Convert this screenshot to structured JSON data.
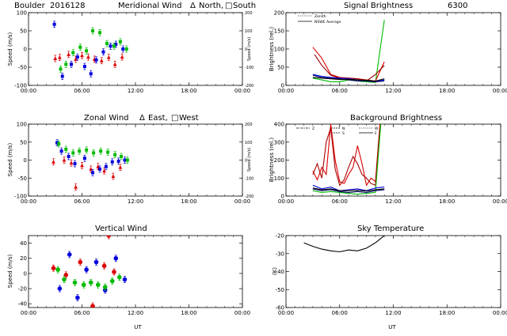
{
  "header": {
    "site": "Boulder",
    "date": "2016128"
  },
  "colors": {
    "north": "#dd0000",
    "south": "#0000dd",
    "east": "#dd0000",
    "west": "#0000dd",
    "zenith": "#00bb00",
    "axis": "#000000"
  },
  "chart_data": [
    {
      "id": "meridional",
      "type": "scatter",
      "title": "Meridional Wind",
      "legend": {
        "marker1": "Δ",
        "label1": "North,",
        "marker2": "□",
        "label2": "South"
      },
      "xlabel": "",
      "ylabel": "Speed (m/s)",
      "ylabel_right": "Speed (m/s)",
      "ylim": [
        -100,
        100
      ],
      "yticks": [
        -100,
        -50,
        0,
        50,
        100
      ],
      "ylim_right": [
        -200,
        200
      ],
      "yticks_right": [
        -200,
        -100,
        0,
        100,
        200
      ],
      "xlim": [
        0,
        24
      ],
      "xticks": [
        "00:00",
        "06:00",
        "12:00",
        "18:00",
        "00:00"
      ],
      "series": [
        {
          "name": "North",
          "color": "#dd0000",
          "marker": "triangle",
          "x": [
            3.0,
            3.5,
            4.5,
            5.3,
            6.0,
            6.7,
            7.4,
            8.2,
            9.0,
            9.7,
            10.5
          ],
          "y": [
            -26,
            -23,
            -15,
            -28,
            -18,
            -22,
            -28,
            -32,
            -23,
            -42,
            -22
          ]
        },
        {
          "name": "South",
          "color": "#0000dd",
          "marker": "square",
          "x": [
            2.9,
            3.8,
            4.8,
            5.5,
            6.3,
            7.0,
            7.6,
            8.4,
            9.2,
            9.8,
            10.6
          ],
          "y": [
            68,
            -75,
            -42,
            -22,
            -48,
            -68,
            -30,
            -8,
            8,
            13,
            0
          ]
        },
        {
          "name": "Zenith",
          "color": "#00bb00",
          "marker": "square",
          "x": [
            3.6,
            4.2,
            5.0,
            5.8,
            6.5,
            7.2,
            8.0,
            8.8,
            9.6,
            10.3,
            11.0
          ],
          "y": [
            -55,
            -42,
            -10,
            5,
            -5,
            50,
            45,
            15,
            8,
            20,
            0
          ]
        }
      ]
    },
    {
      "id": "signal",
      "type": "line",
      "title": "Signal Brightness",
      "title_suffix": "6300",
      "legend": [
        {
          "label": "Zenith",
          "style": "dotted"
        },
        {
          "label": "NSWE Average",
          "style": "solid"
        }
      ],
      "ylabel": "Brightness (rel.)",
      "ylim": [
        0,
        200
      ],
      "yticks": [
        0,
        50,
        100,
        150,
        200
      ],
      "xlim": [
        0,
        24
      ],
      "xticks": [
        "00:00",
        "06:00",
        "12:00",
        "18:00",
        "00:00"
      ],
      "series": [
        {
          "name": "Zenith",
          "color": "#00bb00",
          "x": [
            3.0,
            4.0,
            5.0,
            6.0,
            7.0,
            8.0,
            9.0,
            10.0,
            11.0
          ],
          "y": [
            20,
            15,
            10,
            10,
            15,
            12,
            10,
            8,
            180
          ]
        },
        {
          "name": "North",
          "color": "#dd0000",
          "x": [
            3.0,
            4.0,
            5.0,
            6.0,
            7.0,
            8.0,
            9.0,
            10.0,
            11.0
          ],
          "y": [
            105,
            75,
            30,
            22,
            20,
            18,
            15,
            12,
            65
          ]
        },
        {
          "name": "North 2",
          "color": "#990000",
          "x": [
            3.2,
            4.0,
            5.0,
            6.0,
            7.0,
            8.0,
            9.0,
            10.0,
            11.0
          ],
          "y": [
            85,
            55,
            28,
            20,
            20,
            18,
            12,
            30,
            55
          ]
        },
        {
          "name": "South",
          "color": "#0000dd",
          "x": [
            3.0,
            4.0,
            5.0,
            6.0,
            7.0,
            8.0,
            9.0,
            10.0,
            11.0
          ],
          "y": [
            30,
            25,
            22,
            20,
            18,
            15,
            12,
            10,
            15
          ]
        },
        {
          "name": "West",
          "color": "#000066",
          "x": [
            3.0,
            4.0,
            5.0,
            6.0,
            7.0,
            8.0,
            9.0,
            10.0,
            11.0
          ],
          "y": [
            28,
            22,
            20,
            18,
            15,
            12,
            12,
            10,
            12
          ]
        },
        {
          "name": "Average",
          "color": "#000000",
          "x": [
            3.0,
            4.0,
            5.0,
            6.0,
            7.0,
            8.0,
            9.0,
            10.0,
            11.0
          ],
          "y": [
            22,
            20,
            18,
            16,
            16,
            15,
            14,
            12,
            18
          ]
        }
      ]
    },
    {
      "id": "zonal",
      "type": "scatter",
      "title": "Zonal Wind",
      "legend": {
        "marker1": "Δ",
        "label1": "East,",
        "marker2": "□",
        "label2": "West"
      },
      "ylabel": "Speed (m/s)",
      "ylabel_right": "Speed (m/s)",
      "ylim": [
        -100,
        100
      ],
      "yticks": [
        -100,
        -50,
        0,
        50,
        100
      ],
      "ylim_right": [
        -200,
        200
      ],
      "yticks_right": [
        -200,
        -100,
        0,
        100,
        200
      ],
      "xlim": [
        0,
        24
      ],
      "xticks": [
        "00:00",
        "06:00",
        "12:00",
        "18:00",
        "00:00"
      ],
      "series": [
        {
          "name": "East",
          "color": "#dd0000",
          "marker": "triangle",
          "x": [
            2.8,
            4.0,
            4.8,
            5.3,
            6.0,
            7.0,
            7.8,
            8.5,
            9.5,
            10.3
          ],
          "y": [
            -5,
            0,
            -8,
            -75,
            -15,
            -25,
            -18,
            -30,
            -45,
            -20
          ]
        },
        {
          "name": "West",
          "color": "#0000dd",
          "marker": "square",
          "x": [
            3.2,
            3.7,
            4.5,
            5.2,
            6.3,
            7.2,
            8.0,
            8.7,
            9.4,
            10.1,
            10.8
          ],
          "y": [
            48,
            25,
            10,
            -10,
            5,
            -35,
            -25,
            -18,
            -5,
            -3,
            0
          ]
        },
        {
          "name": "Zenith",
          "color": "#00bb00",
          "marker": "square",
          "x": [
            3.4,
            4.2,
            5.0,
            5.7,
            6.5,
            7.3,
            8.1,
            8.9,
            9.7,
            10.4,
            11.1
          ],
          "y": [
            45,
            30,
            20,
            25,
            28,
            20,
            25,
            22,
            15,
            10,
            0
          ]
        }
      ]
    },
    {
      "id": "background",
      "type": "line",
      "title": "Background Brightness",
      "legend": [
        {
          "label": "Z",
          "style": "dashdot"
        },
        {
          "label": "N",
          "style": "dashed"
        },
        {
          "label": "S",
          "style": "dashed"
        },
        {
          "label": "W",
          "style": "dotted"
        },
        {
          "label": "E",
          "style": "solid"
        }
      ],
      "ylabel": "Brightness (rel.)",
      "ylim": [
        0,
        400
      ],
      "yticks": [
        0,
        100,
        200,
        300,
        400
      ],
      "xlim": [
        0,
        24
      ],
      "xticks": [
        "00:00",
        "06:00",
        "12:00",
        "18:00",
        "00:00"
      ],
      "series": [
        {
          "name": "N",
          "color": "#dd0000",
          "x": [
            3.0,
            3.5,
            4.0,
            4.5,
            5.0,
            5.5,
            6.0,
            6.5,
            7.0,
            7.5,
            8.0,
            8.5,
            9.0,
            9.5,
            10.0,
            10.5
          ],
          "y": [
            140,
            90,
            160,
            120,
            400,
            200,
            80,
            70,
            120,
            160,
            280,
            180,
            60,
            100,
            80,
            400
          ]
        },
        {
          "name": "N 2",
          "color": "#aa0000",
          "x": [
            3.0,
            3.5,
            4.0,
            4.5,
            5.0,
            5.5,
            6.0,
            6.5,
            7.0,
            7.5,
            8.0,
            8.5,
            9.0,
            9.5,
            10.0,
            10.5
          ],
          "y": [
            120,
            180,
            100,
            300,
            380,
            150,
            60,
            90,
            160,
            220,
            180,
            120,
            100,
            70,
            60,
            380
          ]
        },
        {
          "name": "Z",
          "color": "#00bb00",
          "x": [
            3.0,
            4.0,
            5.0,
            6.0,
            7.0,
            8.0,
            9.0,
            10.0,
            10.6
          ],
          "y": [
            30,
            20,
            25,
            20,
            15,
            10,
            15,
            20,
            400
          ]
        },
        {
          "name": "S",
          "color": "#0000dd",
          "x": [
            3.0,
            4.0,
            5.0,
            6.0,
            7.0,
            8.0,
            9.0,
            10.0,
            11.0
          ],
          "y": [
            60,
            40,
            50,
            30,
            35,
            40,
            30,
            45,
            50
          ]
        },
        {
          "name": "W",
          "color": "#000066",
          "x": [
            3.0,
            4.0,
            5.0,
            6.0,
            7.0,
            8.0,
            9.0,
            10.0,
            11.0
          ],
          "y": [
            40,
            30,
            35,
            25,
            20,
            25,
            20,
            30,
            35
          ]
        },
        {
          "name": "E",
          "color": "#000000",
          "x": [
            3.0,
            4.0,
            5.0,
            6.0,
            7.0,
            8.0,
            9.0,
            10.0,
            11.0
          ],
          "y": [
            45,
            35,
            40,
            30,
            30,
            32,
            28,
            35,
            40
          ]
        }
      ]
    },
    {
      "id": "vertical",
      "type": "scatter",
      "title": "Vertical Wind",
      "xlabel": "UT",
      "ylabel": "Speed (m/s)",
      "ylim": [
        -45,
        50
      ],
      "yticks": [
        -40,
        -20,
        0,
        20,
        40
      ],
      "xlim": [
        0,
        24
      ],
      "xticks": [
        "00:00",
        "06:00",
        "12:00",
        "18:00",
        "00:00"
      ],
      "series": [
        {
          "name": "North",
          "color": "#dd0000",
          "marker": "circle",
          "x": [
            2.8,
            4.2,
            5.8,
            7.2,
            8.5,
            9.0,
            9.6
          ],
          "y": [
            7,
            -2,
            15,
            -43,
            10,
            50,
            2
          ]
        },
        {
          "name": "South",
          "color": "#0000dd",
          "marker": "circle",
          "x": [
            3.5,
            4.6,
            5.5,
            6.5,
            7.6,
            8.6,
            9.8,
            10.8
          ],
          "y": [
            -20,
            25,
            -32,
            5,
            15,
            -22,
            20,
            -8
          ]
        },
        {
          "name": "Zenith",
          "color": "#00bb00",
          "marker": "circle",
          "x": [
            3.3,
            4.0,
            5.2,
            6.2,
            7.0,
            7.8,
            8.6,
            9.4,
            10.2
          ],
          "y": [
            5,
            -8,
            -12,
            -15,
            -12,
            -15,
            -18,
            -10,
            -5
          ]
        }
      ]
    },
    {
      "id": "skytemp",
      "type": "line",
      "title": "Sky Temperature",
      "xlabel": "UT",
      "ylabel": "(K)",
      "ylim": [
        -60,
        -20
      ],
      "yticks": [
        -60,
        -50,
        -40,
        -30,
        -20
      ],
      "xlim": [
        0,
        24
      ],
      "xticks": [
        "00:00",
        "06:00",
        "12:00",
        "18:00",
        "00:00"
      ],
      "series": [
        {
          "name": "Sky",
          "color": "#000000",
          "x": [
            2.0,
            3.0,
            4.0,
            5.0,
            6.0,
            7.0,
            8.0,
            9.0,
            10.0,
            11.0
          ],
          "y": [
            -24,
            -26,
            -27.5,
            -28.5,
            -29,
            -28,
            -28.5,
            -27,
            -24,
            -20
          ]
        }
      ]
    }
  ]
}
